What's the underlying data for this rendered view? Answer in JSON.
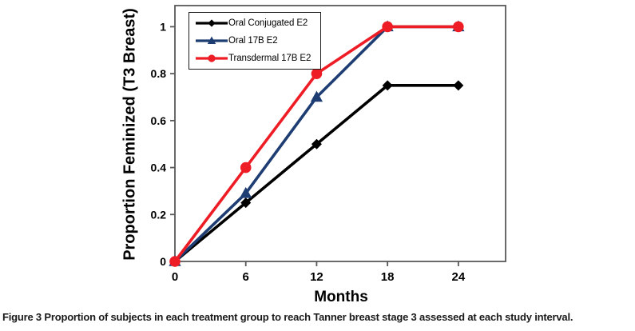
{
  "figure": {
    "caption_label": "Figure 3",
    "caption_text": " Proportion of subjects in each treatment group to reach Tanner breast stage 3 assessed at each study interval."
  },
  "chart_data": {
    "type": "line",
    "title": "",
    "xlabel": "Months",
    "ylabel": "Proportion Feminized (T3 Breast)",
    "x": [
      0,
      6,
      12,
      18,
      24
    ],
    "x_tick_labels": [
      "0",
      "6",
      "12",
      "18",
      "24"
    ],
    "y_ticks": [
      0,
      0.2,
      0.4,
      0.6,
      0.8,
      1
    ],
    "y_tick_labels": [
      "0",
      "0.2",
      "0.4",
      "0.6",
      "0.8",
      "1"
    ],
    "xlim": [
      0,
      28
    ],
    "ylim": [
      0,
      1.09
    ],
    "grid": false,
    "legend_position": "top-left-inside",
    "frame_color": "#595959",
    "series": [
      {
        "name": "Oral Conjugated E2",
        "color": "#000000",
        "marker": "diamond",
        "values": [
          0,
          0.25,
          0.5,
          0.75,
          0.75
        ]
      },
      {
        "name": "Oral 17B E2",
        "color": "#1D3D73",
        "marker": "triangle",
        "values": [
          0,
          0.29,
          0.7,
          1.0,
          1.0
        ]
      },
      {
        "name": "Transdermal 17B E2",
        "color": "#EE1C25",
        "marker": "circle",
        "values": [
          0,
          0.4,
          0.8,
          1.0,
          1.0
        ]
      }
    ]
  }
}
